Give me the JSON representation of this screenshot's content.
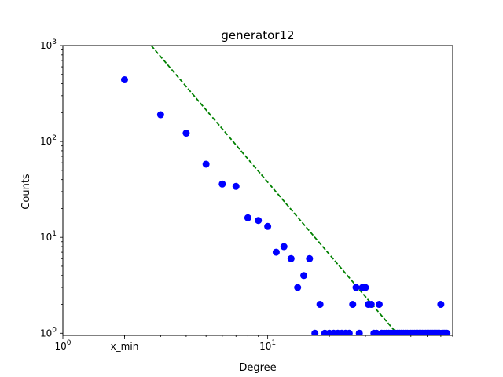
{
  "chart_data": {
    "type": "scatter",
    "title": "generator12",
    "xlabel": "Degree",
    "ylabel": "Counts",
    "xscale": "log",
    "yscale": "log",
    "xlim": [
      1,
      80
    ],
    "ylim": [
      0.95,
      1000
    ],
    "grid": false,
    "x_ticks": [
      {
        "value": 1,
        "base": "10",
        "exp": "0"
      },
      {
        "value": 2,
        "label": "x_min"
      },
      {
        "value": 10,
        "base": "10",
        "exp": "1"
      }
    ],
    "y_ticks": [
      {
        "value": 1,
        "base": "10",
        "exp": "0"
      },
      {
        "value": 10,
        "base": "10",
        "exp": "1"
      },
      {
        "value": 100,
        "base": "10",
        "exp": "2"
      },
      {
        "value": 1000,
        "base": "10",
        "exp": "3"
      }
    ],
    "series": [
      {
        "type": "scatter",
        "color": "#0000ff",
        "x": [
          2,
          3,
          4,
          5,
          6,
          7,
          8,
          9,
          10,
          11,
          12,
          13,
          14,
          15,
          16,
          17,
          18,
          19,
          20,
          21,
          22,
          23,
          24,
          25,
          26,
          27,
          28,
          29,
          30,
          31,
          32,
          33,
          34,
          35,
          36,
          37,
          38,
          39,
          40,
          41,
          42,
          43,
          44,
          45,
          46,
          47,
          48,
          49,
          50,
          51,
          52,
          53,
          54,
          55,
          56,
          57,
          58,
          59,
          60,
          61,
          62,
          63,
          64,
          65,
          66,
          67,
          68,
          69,
          70,
          71,
          72,
          73,
          74,
          75
        ],
        "y": [
          440,
          190,
          122,
          58,
          36,
          34,
          16,
          15,
          13,
          7,
          8,
          6,
          3,
          4,
          6,
          1,
          2,
          1,
          1,
          1,
          1,
          1,
          1,
          1,
          2,
          3,
          1,
          3,
          3,
          2,
          2,
          1,
          1,
          2,
          1,
          1,
          1,
          1,
          1,
          1,
          1,
          1,
          1,
          1,
          1,
          1,
          1,
          1,
          1,
          1,
          1,
          1,
          1,
          1,
          1,
          1,
          1,
          1,
          1,
          1,
          1,
          1,
          1,
          1,
          1,
          1,
          1,
          1,
          2,
          1,
          1,
          1,
          1,
          1
        ]
      },
      {
        "type": "line",
        "style": "dashed",
        "color": "#008000",
        "x": [
          2.7,
          42.6
        ],
        "y": [
          1000,
          1
        ]
      }
    ]
  }
}
